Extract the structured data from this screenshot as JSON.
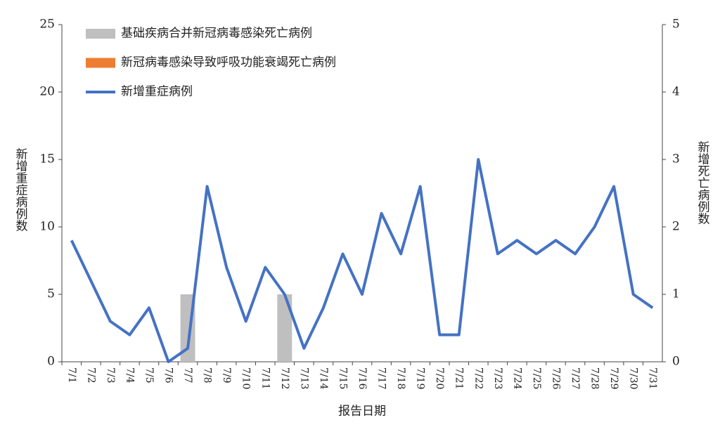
{
  "chart_data": {
    "type": "combo",
    "categories": [
      "7/1",
      "7/2",
      "7/3",
      "7/4",
      "7/5",
      "7/6",
      "7/7",
      "7/8",
      "7/9",
      "7/10",
      "7/11",
      "7/12",
      "7/13",
      "7/14",
      "7/15",
      "7/16",
      "7/17",
      "7/18",
      "7/19",
      "7/20",
      "7/21",
      "7/22",
      "7/23",
      "7/24",
      "7/25",
      "7/26",
      "7/27",
      "7/28",
      "7/29",
      "7/30",
      "7/31"
    ],
    "series": [
      {
        "name": "基础疾病合并新冠病毒感染死亡病例",
        "type": "bar",
        "axis": "y2",
        "color": "#bfbfbf",
        "values": [
          0,
          0,
          0,
          0,
          0,
          0,
          1,
          0,
          0,
          0,
          0,
          1,
          0,
          0,
          0,
          0,
          0,
          0,
          0,
          0,
          0,
          0,
          0,
          0,
          0,
          0,
          0,
          0,
          0,
          0,
          0
        ]
      },
      {
        "name": "新冠病毒感染导致呼吸功能衰竭死亡病例",
        "type": "bar",
        "axis": "y2",
        "color": "#ed7d31",
        "values": [
          0,
          0,
          0,
          0,
          0,
          0,
          0,
          0,
          0,
          0,
          0,
          0,
          0,
          0,
          0,
          0,
          0,
          0,
          0,
          0,
          0,
          0,
          0,
          0,
          0,
          0,
          0,
          0,
          0,
          0,
          0
        ]
      },
      {
        "name": "新增重症病例",
        "type": "line",
        "axis": "y",
        "color": "#4472c4",
        "values": [
          9,
          6,
          3,
          2,
          4,
          0,
          1,
          13,
          7,
          3,
          7,
          5,
          1,
          4,
          8,
          5,
          11,
          8,
          13,
          2,
          2,
          15,
          8,
          9,
          8,
          9,
          8,
          10,
          13,
          5,
          4
        ]
      }
    ],
    "ylabel": "新增重症病例数",
    "y2label": "新增死亡病例数",
    "xlabel": "报告日期",
    "ylim": [
      0,
      25
    ],
    "yticks": [
      0,
      5,
      10,
      15,
      20,
      25
    ],
    "y2lim": [
      0,
      5
    ],
    "y2ticks": [
      0,
      1,
      2,
      3,
      4,
      5
    ],
    "grid": false,
    "legend": "top-left"
  }
}
